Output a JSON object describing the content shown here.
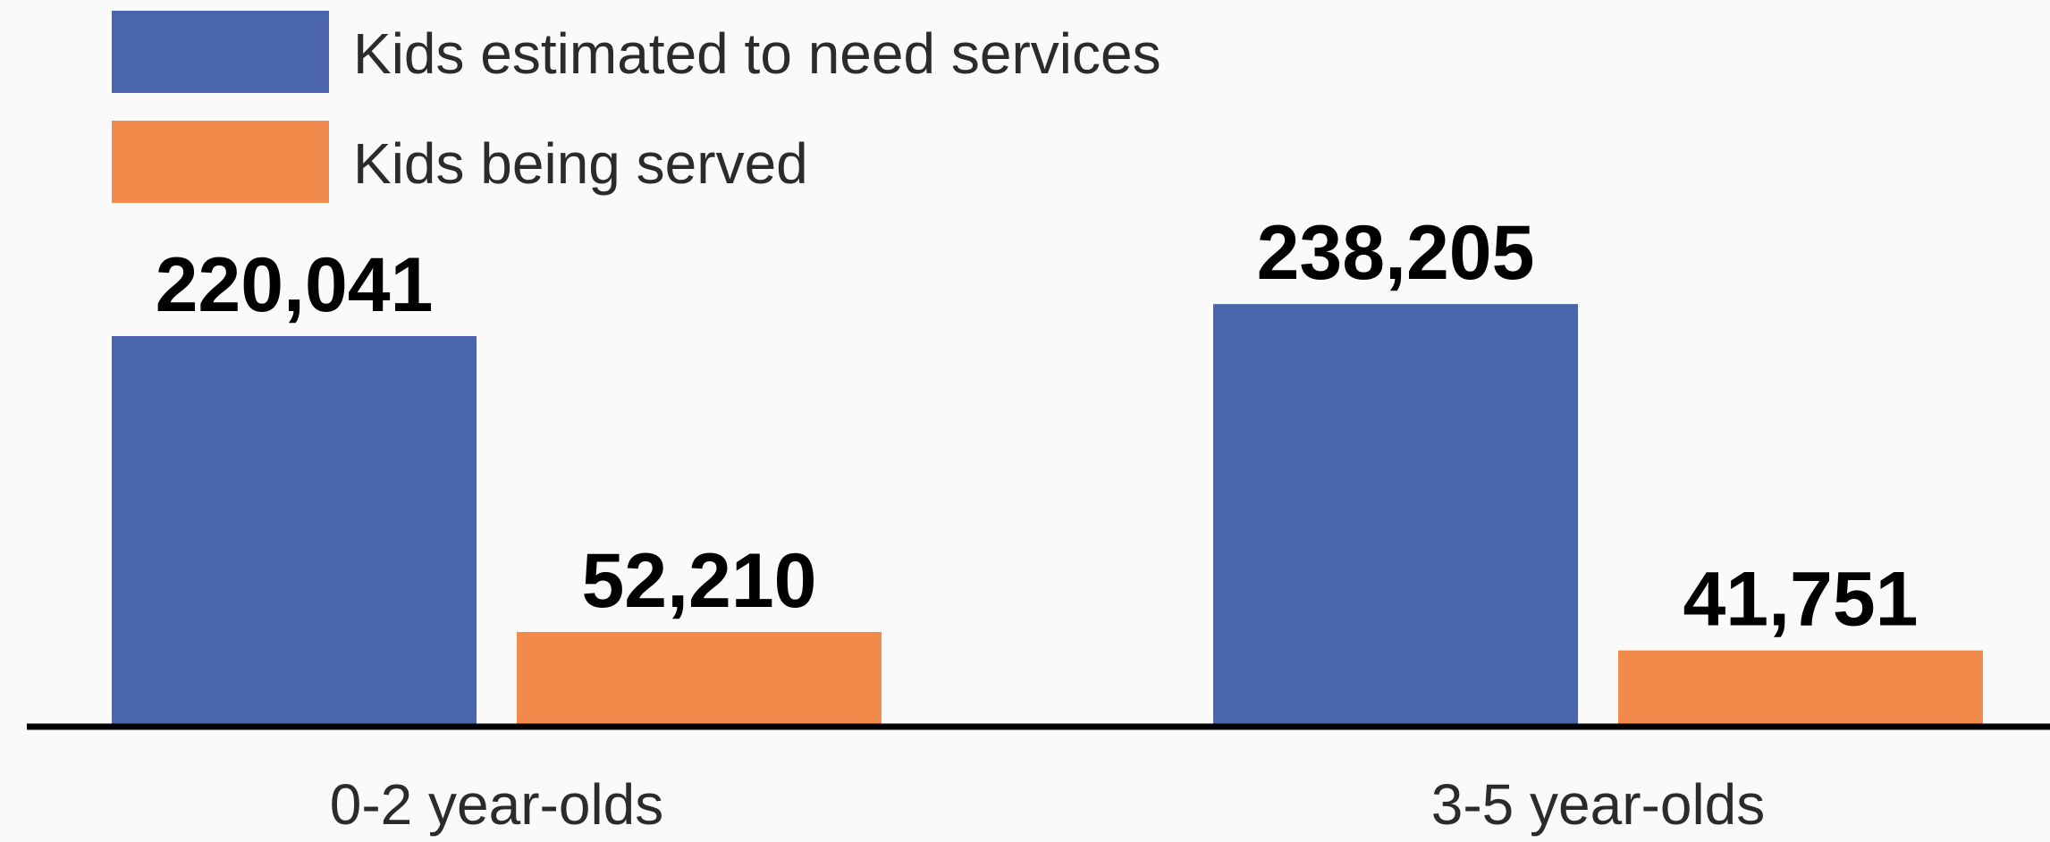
{
  "chart_data": {
    "type": "bar",
    "categories": [
      "0-2 year-olds",
      "3-5 year-olds"
    ],
    "series": [
      {
        "name": "Kids estimated to need services",
        "values": [
          220041,
          238205
        ],
        "labels": [
          "220,041",
          "238,205"
        ],
        "color": "#4a64ae"
      },
      {
        "name": "Kids being served",
        "values": [
          52210,
          41751
        ],
        "labels": [
          "52,210",
          "41,751"
        ],
        "color": "#f28a4c"
      }
    ],
    "ylim": [
      0,
      250000
    ],
    "grid": false,
    "legend": "top-left",
    "title": "",
    "xlabel": "",
    "ylabel": ""
  }
}
